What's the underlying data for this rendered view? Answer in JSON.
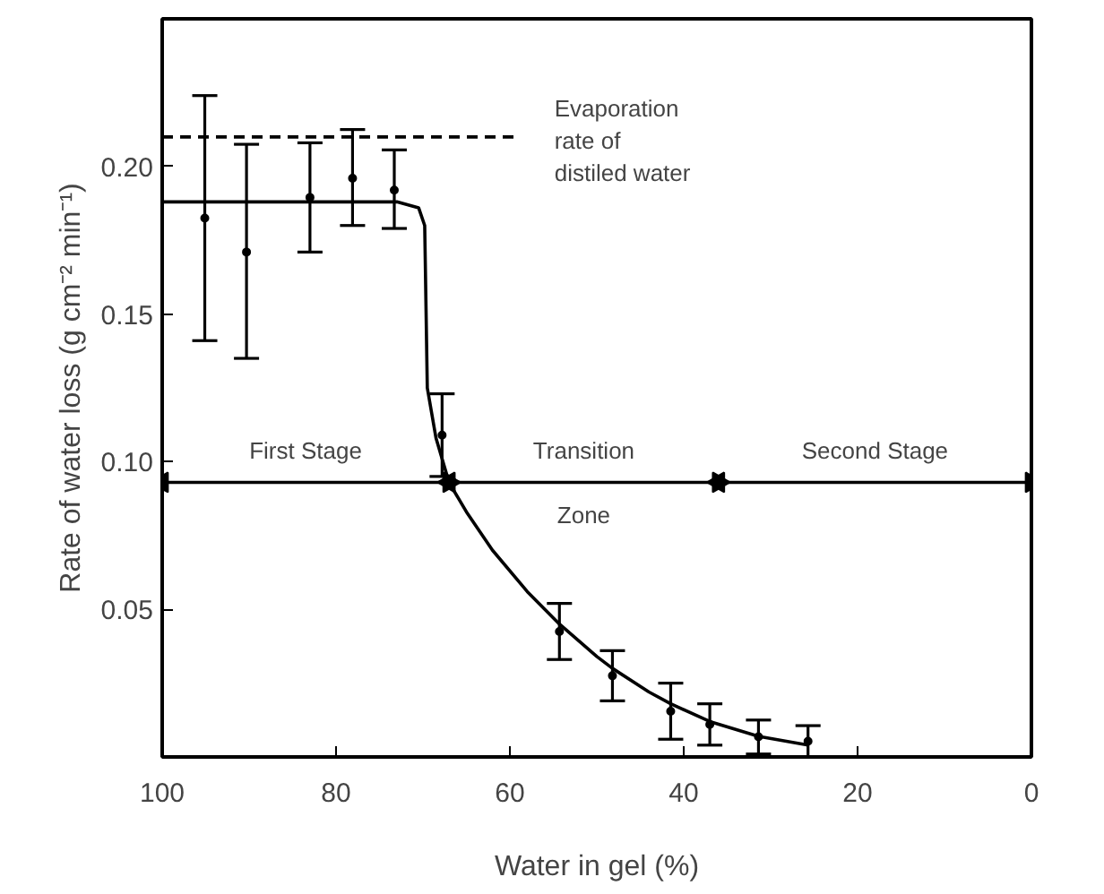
{
  "chart_data": {
    "type": "line",
    "xlabel": "Water in gel (%)",
    "ylabel": "Rate of water loss (g cm⁻² min⁻¹)",
    "xlim": [
      100,
      0
    ],
    "ylim": [
      0,
      0.25
    ],
    "xticks": [
      100,
      80,
      60,
      40,
      20,
      0
    ],
    "yticks": [
      0.05,
      {
        "value": 0.1,
        "label": "0.10"
      },
      0.15,
      {
        "value": 0.2,
        "label": "0.20"
      }
    ],
    "grid": false,
    "series": [
      {
        "type": "line",
        "color": "#000000",
        "line_style": "dashed",
        "x": [
          100,
          59
        ],
        "values": [
          0.21,
          0.21
        ]
      },
      {
        "type": "line",
        "color": "#000000",
        "line_style": "solid",
        "x": [
          100,
          73,
          70.5,
          69.8,
          69.5,
          68.5,
          67,
          65,
          62,
          58,
          54.3,
          50,
          48.2,
          44,
          41.5,
          37,
          31.4,
          25.7
        ],
        "values": [
          0.188,
          0.188,
          0.186,
          0.18,
          0.125,
          0.108,
          0.093,
          0.083,
          0.07,
          0.056,
          0.045,
          0.034,
          0.03,
          0.022,
          0.018,
          0.012,
          0.007,
          0.004
        ]
      },
      {
        "type": "scatter",
        "marker": "circle",
        "color": "#000000",
        "x": [
          95.1,
          90.3,
          83,
          78.1,
          73.3,
          67.8,
          54.3,
          48.2,
          41.5,
          37,
          31.4,
          25.7
        ],
        "values": [
          0.1825,
          0.171,
          0.1895,
          0.196,
          0.192,
          0.109,
          0.0425,
          0.0275,
          0.0155,
          0.011,
          0.0068,
          0.0053
        ],
        "errors": [
          [
            0.141,
            0.224
          ],
          [
            0.135,
            0.2075
          ],
          [
            0.171,
            0.208
          ],
          [
            0.18,
            0.2125
          ],
          [
            0.179,
            0.2056
          ],
          [
            0.095,
            0.123
          ],
          [
            0.033,
            0.052
          ],
          [
            0.019,
            0.036
          ],
          [
            0.006,
            0.025
          ],
          [
            0.004,
            0.018
          ],
          [
            0.001,
            0.0125
          ],
          [
            0.0,
            0.0106
          ]
        ]
      },
      {
        "marker": "triangle",
        "color": "#000000",
        "line_style": "solid",
        "x": [
          100,
          67
        ],
        "values": [
          0.093,
          0.093
        ]
      },
      {
        "marker": "triangle",
        "color": "#000000",
        "line_style": "solid",
        "x": [
          67,
          36
        ],
        "values": [
          0.093,
          0.093
        ]
      },
      {
        "marker": "triangle",
        "color": "#000000",
        "line_style": "solid",
        "x": [
          36,
          0
        ],
        "values": [
          0.093,
          0.093
        ]
      }
    ],
    "annotations": [
      "Evaporation\nrate of\ndistiled water",
      "First Stage",
      "Transition\nZone",
      "Second Stage"
    ]
  }
}
